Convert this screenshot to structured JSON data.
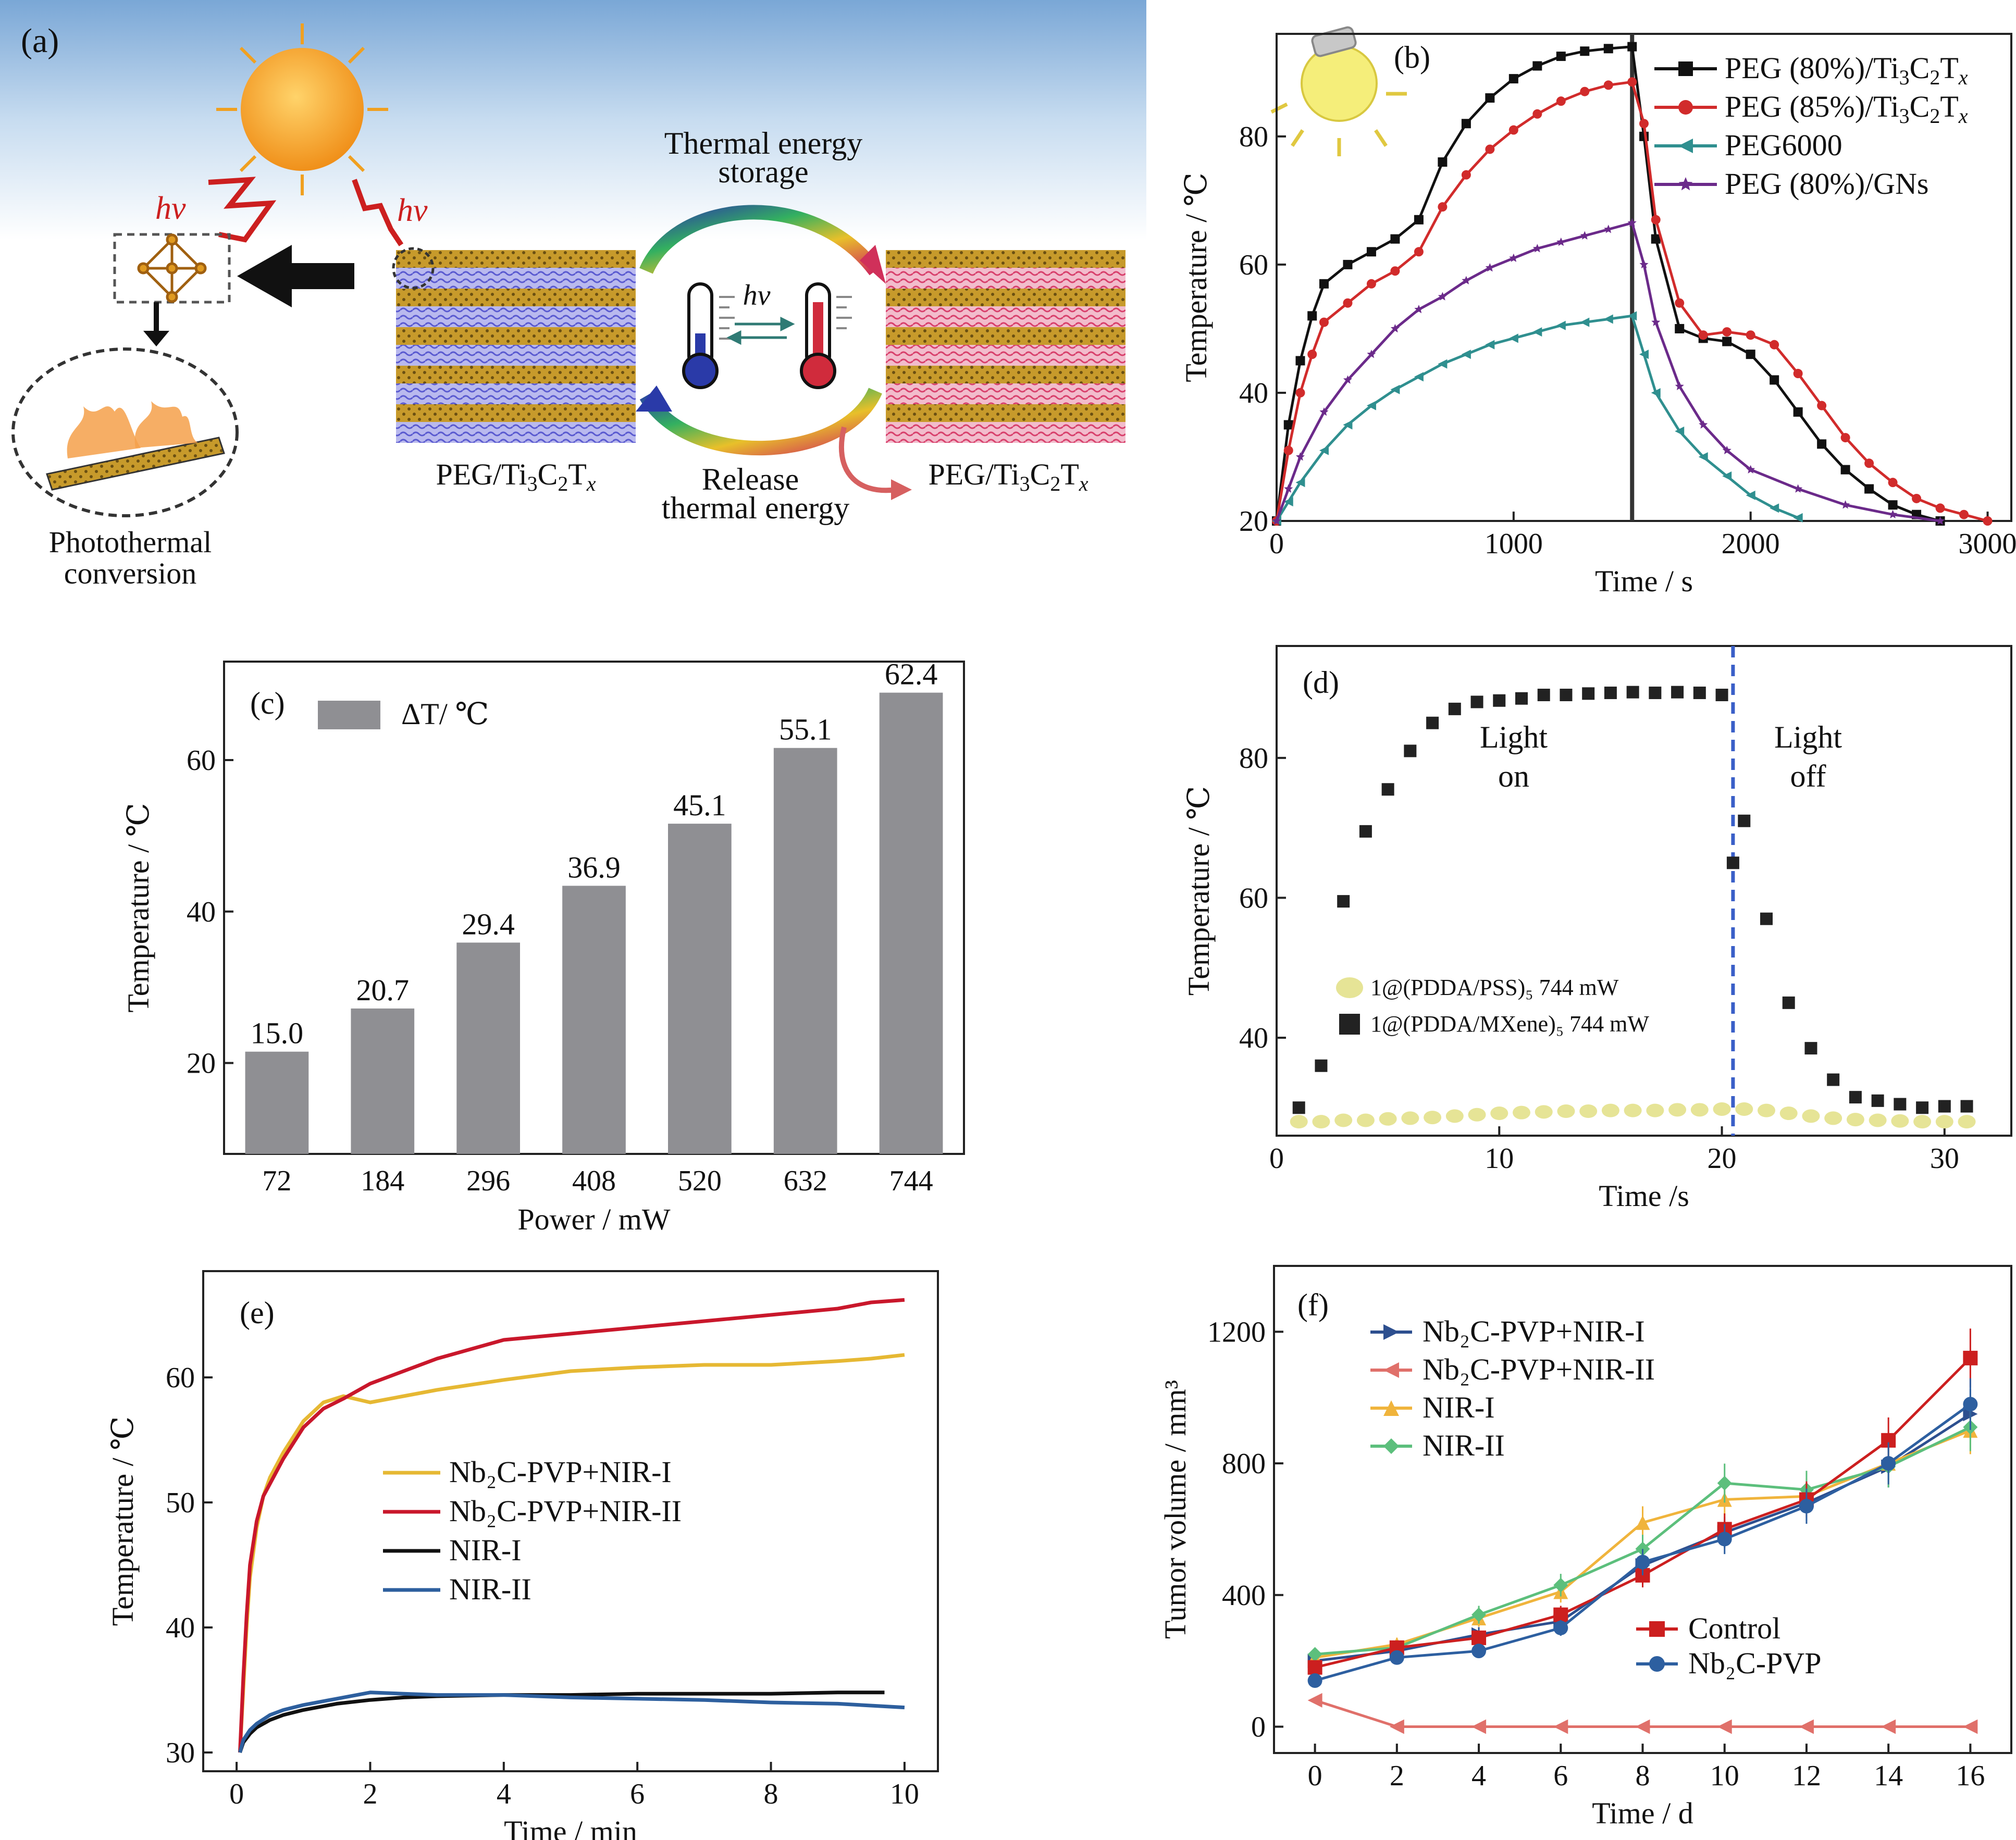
{
  "panel_a": {
    "label": "(a)",
    "hv": "hν",
    "storage_line1": "Thermal energy",
    "storage_line2": "storage",
    "release_line1": "Release",
    "release_line2": "thermal energy",
    "material": "PEG/Ti",
    "material_sub": "3",
    "material_c": "C",
    "material_sub2": "2",
    "material_t": "T",
    "material_x": "x",
    "photo_line1": "Photothermal",
    "photo_line2": "conversion",
    "colors": {
      "sky_top": "#7aa7d6",
      "sky_bottom": "#ffffff",
      "sun": "#f5a422",
      "hv": "#cc1f1f",
      "peg_blue": "#6a6ad6",
      "peg_pink": "#e0507a",
      "mxene": "#c79a2b"
    }
  },
  "chart_data": [
    {
      "panel": "(b)",
      "type": "line",
      "xlabel": "Time / s",
      "ylabel": "Temperature / ℃",
      "xlim": [
        0,
        3100
      ],
      "ylim": [
        20,
        96
      ],
      "xticks": [
        0,
        1000,
        2000,
        3000
      ],
      "yticks": [
        20,
        40,
        60,
        80
      ],
      "vline_x": 1500,
      "legend": "top-right",
      "series": [
        {
          "name": "PEG (80%)/Ti3C2Tx",
          "color": "#111111",
          "marker": "square",
          "x": [
            0,
            50,
            100,
            150,
            200,
            300,
            400,
            500,
            600,
            700,
            800,
            900,
            1000,
            1100,
            1200,
            1300,
            1400,
            1500,
            1550,
            1600,
            1700,
            1800,
            1900,
            2000,
            2100,
            2200,
            2300,
            2400,
            2500,
            2600,
            2700,
            2800
          ],
          "y": [
            20,
            35,
            45,
            52,
            57,
            60,
            62,
            64,
            67,
            76,
            82,
            86,
            89,
            91,
            92.5,
            93.3,
            93.7,
            94,
            80,
            64,
            50,
            48.5,
            48,
            46,
            42,
            37,
            32,
            28,
            25,
            22.5,
            21,
            20
          ]
        },
        {
          "name": "PEG (85%)/Ti3C2Tx",
          "color": "#d12b2b",
          "marker": "circle",
          "x": [
            0,
            50,
            100,
            150,
            200,
            300,
            400,
            500,
            600,
            700,
            800,
            900,
            1000,
            1100,
            1200,
            1300,
            1400,
            1500,
            1550,
            1600,
            1700,
            1800,
            1900,
            2000,
            2100,
            2200,
            2300,
            2400,
            2500,
            2600,
            2700,
            2800,
            2900,
            3000
          ],
          "y": [
            20,
            31,
            40,
            46,
            51,
            54,
            57,
            59,
            62,
            69,
            74,
            78,
            81,
            83.5,
            85.5,
            87,
            88,
            88.5,
            82,
            67,
            54,
            49,
            49.5,
            49,
            47.5,
            43,
            38,
            33,
            29,
            26,
            23.5,
            22,
            21,
            20
          ]
        },
        {
          "name": "PEG6000",
          "color": "#2f8f8f",
          "marker": "triangle-left",
          "x": [
            0,
            50,
            100,
            200,
            300,
            400,
            500,
            600,
            700,
            800,
            900,
            1000,
            1100,
            1200,
            1300,
            1400,
            1500,
            1550,
            1600,
            1700,
            1800,
            1900,
            2000,
            2100,
            2200
          ],
          "y": [
            20,
            23,
            26,
            31,
            35,
            38,
            40.5,
            42.5,
            44.5,
            46,
            47.5,
            48.5,
            49.5,
            50.5,
            51,
            51.5,
            52,
            46,
            40,
            34,
            30,
            27,
            24,
            22,
            20.5
          ]
        },
        {
          "name": "PEG (80%)/GNs",
          "color": "#6b2a8a",
          "marker": "star",
          "x": [
            0,
            50,
            100,
            200,
            300,
            400,
            500,
            600,
            700,
            800,
            900,
            1000,
            1100,
            1200,
            1300,
            1400,
            1500,
            1550,
            1600,
            1700,
            1800,
            1900,
            2000,
            2200,
            2400,
            2600,
            2800
          ],
          "y": [
            20,
            25,
            30,
            37,
            42,
            46,
            50,
            53,
            55,
            57.5,
            59.5,
            61,
            62.5,
            63.5,
            64.5,
            65.5,
            66.5,
            60,
            51,
            41,
            35,
            31,
            28,
            25,
            22.5,
            21,
            20
          ]
        }
      ]
    },
    {
      "panel": "(c)",
      "type": "bar",
      "xlabel": "Power / mW",
      "ylabel": "Temperature / ℃",
      "legend": "ΔT/ ℃",
      "ylim": [
        8,
        73
      ],
      "yticks": [
        20,
        40,
        60
      ],
      "categories": [
        "72",
        "184",
        "296",
        "408",
        "520",
        "632",
        "744"
      ],
      "values": [
        21.5,
        27.2,
        35.9,
        43.4,
        51.6,
        61.6,
        68.9
      ],
      "data_labels": [
        "15.0",
        "20.7",
        "29.4",
        "36.9",
        "45.1",
        "55.1",
        "62.4"
      ],
      "bar_color": "#8f8f93"
    },
    {
      "panel": "(d)",
      "type": "scatter",
      "xlabel": "Time /s",
      "ylabel": "Temperature / ℃",
      "xlim": [
        0,
        33
      ],
      "ylim": [
        26,
        96
      ],
      "xticks": [
        0,
        10,
        20,
        30
      ],
      "yticks": [
        40,
        60,
        80
      ],
      "vline_x": 20.5,
      "annotations": [
        "Light",
        "on",
        "Light",
        "off"
      ],
      "series": [
        {
          "name": "1@(PDDA/PSS)₅ 744 mW",
          "color": "#e6e496",
          "marker": "circle",
          "x": [
            1,
            2,
            3,
            4,
            5,
            6,
            7,
            8,
            9,
            10,
            11,
            12,
            13,
            14,
            15,
            16,
            17,
            18,
            19,
            20,
            21,
            22,
            23,
            24,
            25,
            26,
            27,
            28,
            29,
            30,
            31
          ],
          "y": [
            28,
            28,
            28.2,
            28.2,
            28.4,
            28.5,
            28.6,
            28.8,
            29,
            29.2,
            29.3,
            29.4,
            29.5,
            29.5,
            29.6,
            29.6,
            29.6,
            29.7,
            29.7,
            29.8,
            29.8,
            29.6,
            29.2,
            28.8,
            28.5,
            28.3,
            28.2,
            28.1,
            28,
            28,
            28
          ]
        },
        {
          "name": "1@(PDDA/MXene)₅ 744 mW",
          "color": "#222222",
          "marker": "square",
          "x": [
            1,
            2,
            3,
            4,
            5,
            6,
            7,
            8,
            9,
            10,
            11,
            12,
            13,
            14,
            15,
            16,
            17,
            18,
            19,
            20,
            20.5,
            21,
            22,
            23,
            24,
            25,
            26,
            27,
            28,
            29,
            30,
            31
          ],
          "y": [
            30,
            36,
            59.5,
            69.5,
            75.5,
            81,
            85,
            87,
            88,
            88.2,
            88.5,
            89,
            89,
            89.2,
            89.3,
            89.4,
            89.3,
            89.4,
            89.3,
            89,
            65,
            71,
            57,
            45,
            38.5,
            34,
            31.5,
            31,
            30.5,
            30,
            30.2,
            30.2
          ]
        }
      ]
    },
    {
      "panel": "(e)",
      "type": "line",
      "xlabel": "Time / min",
      "ylabel": "Temperature / ℃",
      "xlim": [
        -0.5,
        10.5
      ],
      "ylim": [
        28.5,
        68.5
      ],
      "xticks": [
        0,
        2,
        4,
        6,
        8,
        10
      ],
      "yticks": [
        30,
        40,
        50,
        60
      ],
      "series": [
        {
          "name": "Nb₂C-PVP+NIR-I",
          "color": "#e6b833",
          "x": [
            0.05,
            0.1,
            0.15,
            0.2,
            0.3,
            0.4,
            0.5,
            0.7,
            1,
            1.3,
            1.6,
            2,
            2.5,
            3,
            4,
            5,
            6,
            7,
            8,
            9,
            9.5,
            10
          ],
          "y": [
            30,
            35,
            40,
            44,
            48,
            50.5,
            52,
            54,
            56.5,
            58,
            58.5,
            58,
            58.5,
            59,
            59.8,
            60.5,
            60.8,
            61,
            61,
            61.3,
            61.5,
            61.8
          ]
        },
        {
          "name": "Nb₂C-PVP+NIR-II",
          "color": "#c9172b",
          "x": [
            0.05,
            0.1,
            0.15,
            0.2,
            0.3,
            0.4,
            0.5,
            0.7,
            1,
            1.3,
            1.6,
            2,
            2.5,
            3,
            4,
            5,
            6,
            7,
            8,
            9,
            9.5,
            10
          ],
          "y": [
            30,
            36,
            41,
            45,
            48.5,
            50.5,
            51.5,
            53.5,
            56,
            57.5,
            58.3,
            59.5,
            60.5,
            61.5,
            63,
            63.5,
            64,
            64.5,
            65,
            65.5,
            66,
            66.2
          ]
        },
        {
          "name": "NIR-I",
          "color": "#111111",
          "x": [
            0.05,
            0.1,
            0.2,
            0.3,
            0.5,
            0.7,
            1,
            1.5,
            2,
            2.5,
            3,
            4,
            5,
            6,
            7,
            8,
            9,
            9.7
          ],
          "y": [
            30,
            30.8,
            31.5,
            32,
            32.6,
            33,
            33.4,
            33.9,
            34.2,
            34.4,
            34.5,
            34.6,
            34.6,
            34.7,
            34.7,
            34.7,
            34.8,
            34.8
          ]
        },
        {
          "name": "NIR-II",
          "color": "#2d5f9e",
          "x": [
            0.05,
            0.1,
            0.2,
            0.3,
            0.5,
            0.7,
            1,
            1.5,
            2,
            2.5,
            3,
            4,
            5,
            6,
            7,
            8,
            9,
            10
          ],
          "y": [
            30,
            31,
            31.8,
            32.3,
            33,
            33.4,
            33.8,
            34.3,
            34.8,
            34.7,
            34.6,
            34.6,
            34.4,
            34.3,
            34.2,
            34,
            33.9,
            33.6
          ]
        }
      ]
    },
    {
      "panel": "(f)",
      "type": "line",
      "xlabel": "Time / d",
      "ylabel": "Tumor volume / mm³",
      "xlim": [
        -1,
        17
      ],
      "ylim": [
        -80,
        1400
      ],
      "xticks": [
        0,
        2,
        4,
        6,
        8,
        10,
        12,
        14,
        16
      ],
      "yticks": [
        0,
        400,
        800,
        1200
      ],
      "series": [
        {
          "name": "Nb₂C-PVP+NIR-I",
          "color": "#2d4f8f",
          "marker": "triangle-right",
          "x": [
            0,
            2,
            4,
            6,
            8,
            10,
            12,
            14,
            16
          ],
          "y": [
            200,
            230,
            280,
            320,
            490,
            590,
            680,
            790,
            950
          ]
        },
        {
          "name": "Nb₂C-PVP+NIR-II",
          "color": "#e0706a",
          "marker": "triangle-left",
          "x": [
            0,
            2,
            4,
            6,
            8,
            10,
            12,
            14,
            16
          ],
          "y": [
            80,
            0,
            0,
            0,
            0,
            0,
            0,
            0,
            0
          ]
        },
        {
          "name": "NIR-I",
          "color": "#f0b43c",
          "marker": "triangle-up",
          "x": [
            0,
            2,
            4,
            6,
            8,
            10,
            12,
            14,
            16
          ],
          "y": [
            210,
            250,
            330,
            410,
            620,
            690,
            700,
            800,
            900
          ]
        },
        {
          "name": "NIR-II",
          "color": "#5cbf7c",
          "marker": "diamond",
          "x": [
            0,
            2,
            4,
            6,
            8,
            10,
            12,
            14,
            16
          ],
          "y": [
            220,
            240,
            340,
            430,
            540,
            740,
            720,
            790,
            910
          ]
        },
        {
          "name": "Control",
          "color": "#cc1f1f",
          "marker": "square",
          "x": [
            0,
            2,
            4,
            6,
            8,
            10,
            12,
            14,
            16
          ],
          "y": [
            180,
            240,
            270,
            340,
            460,
            600,
            690,
            870,
            1120
          ]
        },
        {
          "name": "Nb₂C-PVP",
          "color": "#2d5fa0",
          "marker": "circle",
          "x": [
            0,
            2,
            4,
            6,
            8,
            10,
            12,
            14,
            16
          ],
          "y": [
            140,
            210,
            230,
            300,
            500,
            570,
            670,
            800,
            980
          ]
        }
      ]
    }
  ]
}
